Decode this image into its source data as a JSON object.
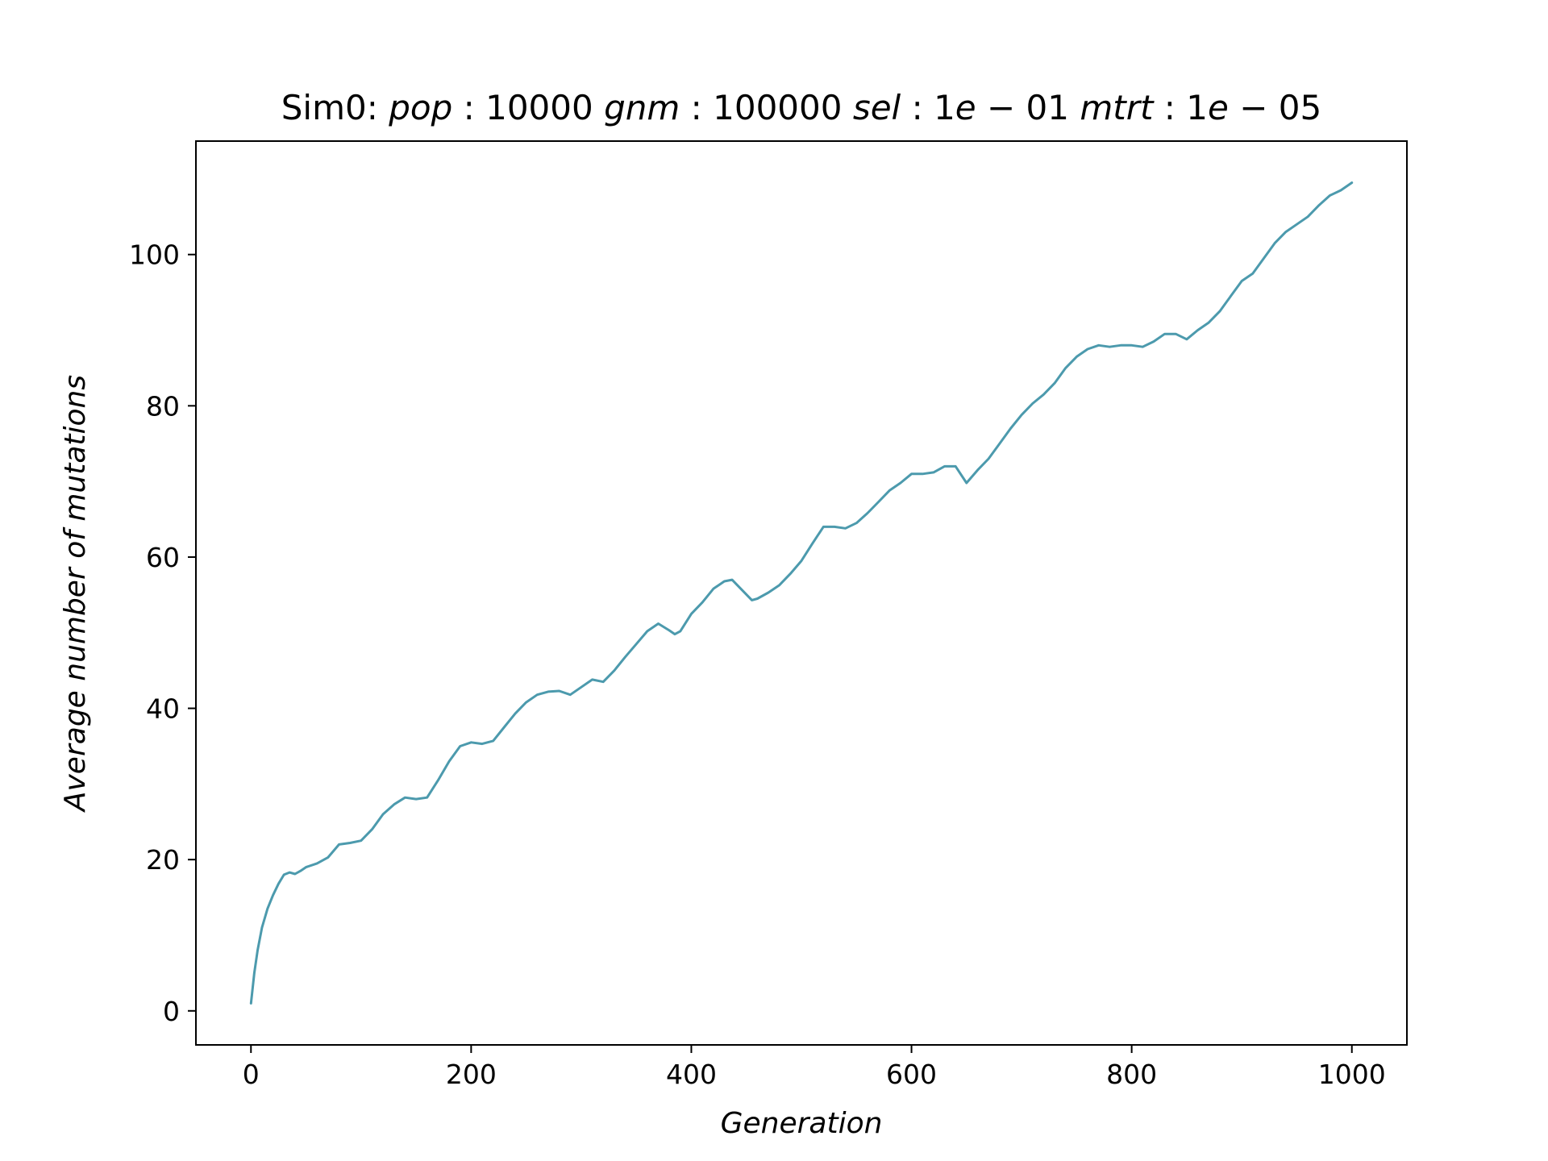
{
  "figure": {
    "background": "#ffffff"
  },
  "chart_data": {
    "type": "line",
    "title": "Sim0: pop : 10000 gnm : 100000 sel : 1e − 01 mtrt : 1e − 05",
    "title_parts": [
      {
        "text": "Sim0: ",
        "italic": false
      },
      {
        "text": "pop",
        "italic": true
      },
      {
        "text": " : 10000 ",
        "italic": false
      },
      {
        "text": "gnm",
        "italic": true
      },
      {
        "text": " : 100000 ",
        "italic": false
      },
      {
        "text": "sel",
        "italic": true
      },
      {
        "text": " : 1",
        "italic": false
      },
      {
        "text": "e",
        "italic": true
      },
      {
        "text": " − 01 ",
        "italic": false
      },
      {
        "text": "mtrt",
        "italic": true
      },
      {
        "text": " : 1",
        "italic": false
      },
      {
        "text": "e",
        "italic": true
      },
      {
        "text": " − 05",
        "italic": false
      }
    ],
    "xlabel": "Generation",
    "ylabel": "Average number of mutations",
    "xlim": [
      -50,
      1050
    ],
    "ylim": [
      -4.5,
      115
    ],
    "xticks": [
      0,
      200,
      400,
      600,
      800,
      1000
    ],
    "yticks": [
      0,
      20,
      40,
      60,
      80,
      100
    ],
    "grid": false,
    "legend": "none",
    "line_color": "#4c9aad",
    "series": [
      {
        "x": [
          0,
          3,
          6,
          10,
          15,
          20,
          25,
          30,
          35,
          40,
          45,
          50,
          60,
          70,
          80,
          90,
          100,
          110,
          120,
          130,
          140,
          150,
          160,
          170,
          180,
          190,
          200,
          210,
          220,
          230,
          240,
          250,
          260,
          270,
          280,
          290,
          300,
          310,
          320,
          330,
          340,
          350,
          360,
          370,
          380,
          385,
          390,
          400,
          410,
          420,
          430,
          437,
          445,
          455,
          460,
          470,
          480,
          490,
          500,
          510,
          520,
          530,
          540,
          550,
          560,
          570,
          580,
          590,
          600,
          610,
          620,
          630,
          640,
          650,
          660,
          670,
          680,
          690,
          700,
          710,
          720,
          730,
          740,
          750,
          760,
          770,
          780,
          790,
          800,
          810,
          820,
          830,
          840,
          850,
          860,
          870,
          880,
          890,
          900,
          910,
          920,
          930,
          940,
          950,
          960,
          970,
          980,
          990,
          1000
        ],
        "y": [
          1,
          5,
          8,
          11,
          13.5,
          15.3,
          16.8,
          18,
          18.3,
          18.1,
          18.5,
          19,
          19.5,
          20.3,
          22,
          22.2,
          22.5,
          24,
          26,
          27.3,
          28.2,
          28,
          28.2,
          30.5,
          33,
          35,
          35.5,
          35.3,
          35.7,
          37.5,
          39.3,
          40.8,
          41.8,
          42.2,
          42.3,
          41.8,
          42.8,
          43.8,
          43.5,
          45,
          46.8,
          48.5,
          50.2,
          51.2,
          50.3,
          49.8,
          50.2,
          52.5,
          54,
          55.8,
          56.8,
          57,
          55.8,
          54.3,
          54.5,
          55.3,
          56.3,
          57.8,
          59.5,
          61.8,
          64,
          64,
          63.8,
          64.5,
          65.8,
          67.3,
          68.8,
          69.8,
          71,
          71,
          71.2,
          72,
          72,
          69.8,
          71.5,
          73,
          75,
          77,
          78.8,
          80.3,
          81.5,
          83,
          85,
          86.5,
          87.5,
          88,
          87.8,
          88,
          88,
          87.8,
          88.5,
          89.5,
          89.5,
          88.8,
          90,
          91,
          92.5,
          94.5,
          96.5,
          97.5,
          99.5,
          101.5,
          103,
          104,
          105,
          106.5,
          107.8,
          108.5,
          109.5
        ]
      }
    ]
  }
}
